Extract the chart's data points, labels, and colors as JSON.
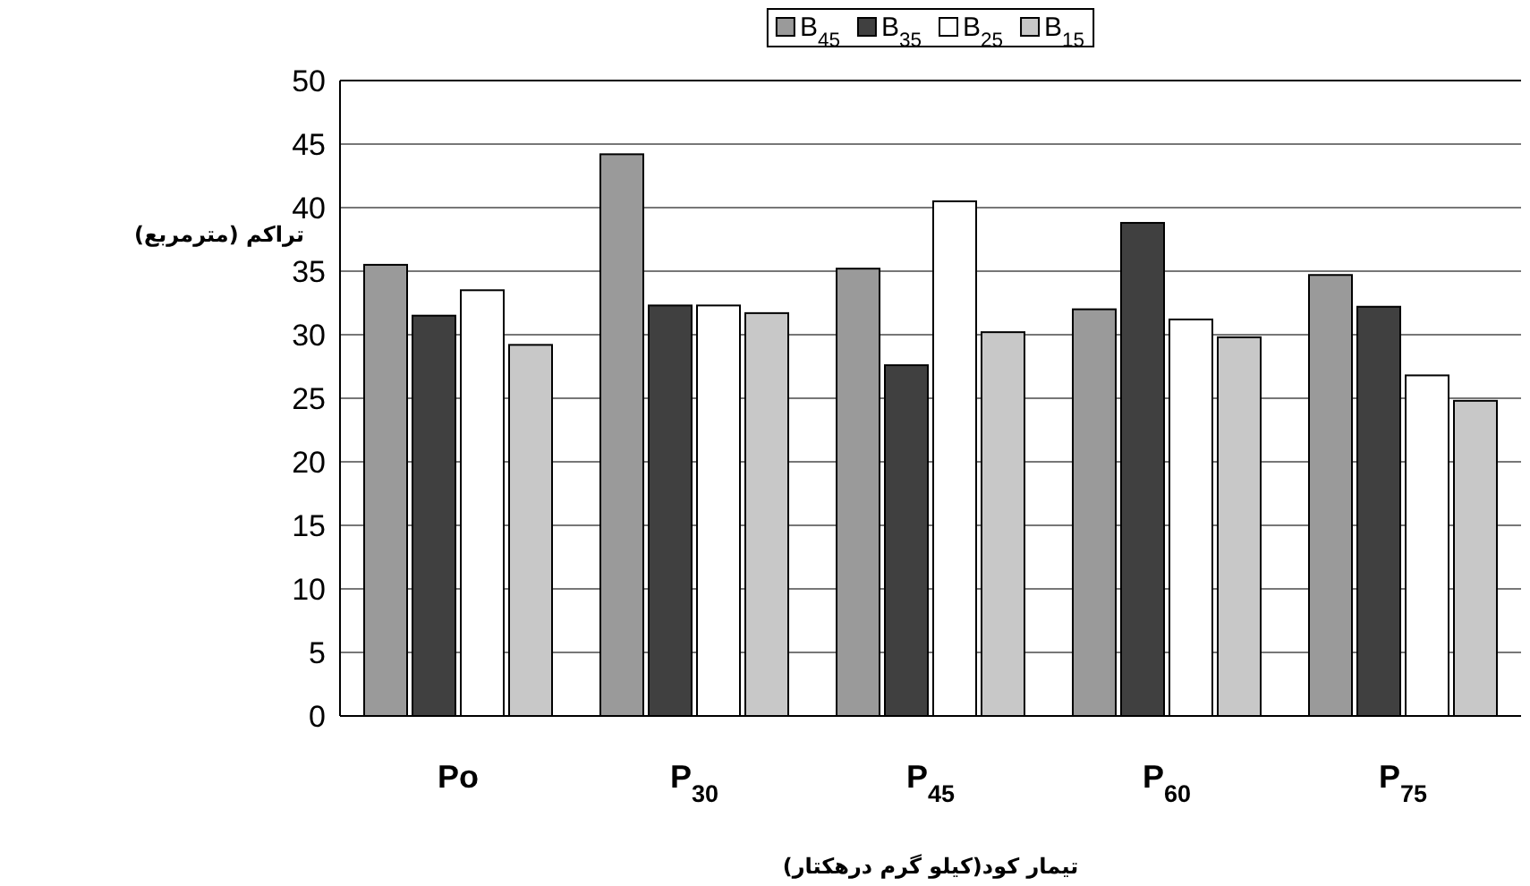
{
  "chart_data": {
    "type": "bar",
    "categories": [
      "Po",
      "P$_{30}$",
      "P$_{45}$",
      "P$_{60}$",
      "P$_{75}$"
    ],
    "series": [
      {
        "name": "B$_{45}$",
        "color": "#9a9a9a",
        "values": [
          35.5,
          44.2,
          35.2,
          32.0,
          34.7
        ]
      },
      {
        "name": "B$_{35}$",
        "color": "#404040",
        "values": [
          31.5,
          32.3,
          27.6,
          38.8,
          32.2
        ]
      },
      {
        "name": "B$_{25}$",
        "color": "#ffffff",
        "values": [
          33.5,
          32.3,
          40.5,
          31.2,
          26.8
        ]
      },
      {
        "name": "B$_{15}$",
        "color": "#c8c8c8",
        "values": [
          29.2,
          31.7,
          30.2,
          29.8,
          24.8
        ]
      }
    ],
    "xlabel": "تیمار کود(کیلو گرم درهکتار)",
    "ylabel": "تراکم (مترمربع)",
    "ylim": [
      0,
      50
    ],
    "yticks": [
      0,
      5,
      10,
      15,
      20,
      25,
      30,
      35,
      40,
      45,
      50
    ],
    "grid": "y",
    "legend": "top"
  }
}
